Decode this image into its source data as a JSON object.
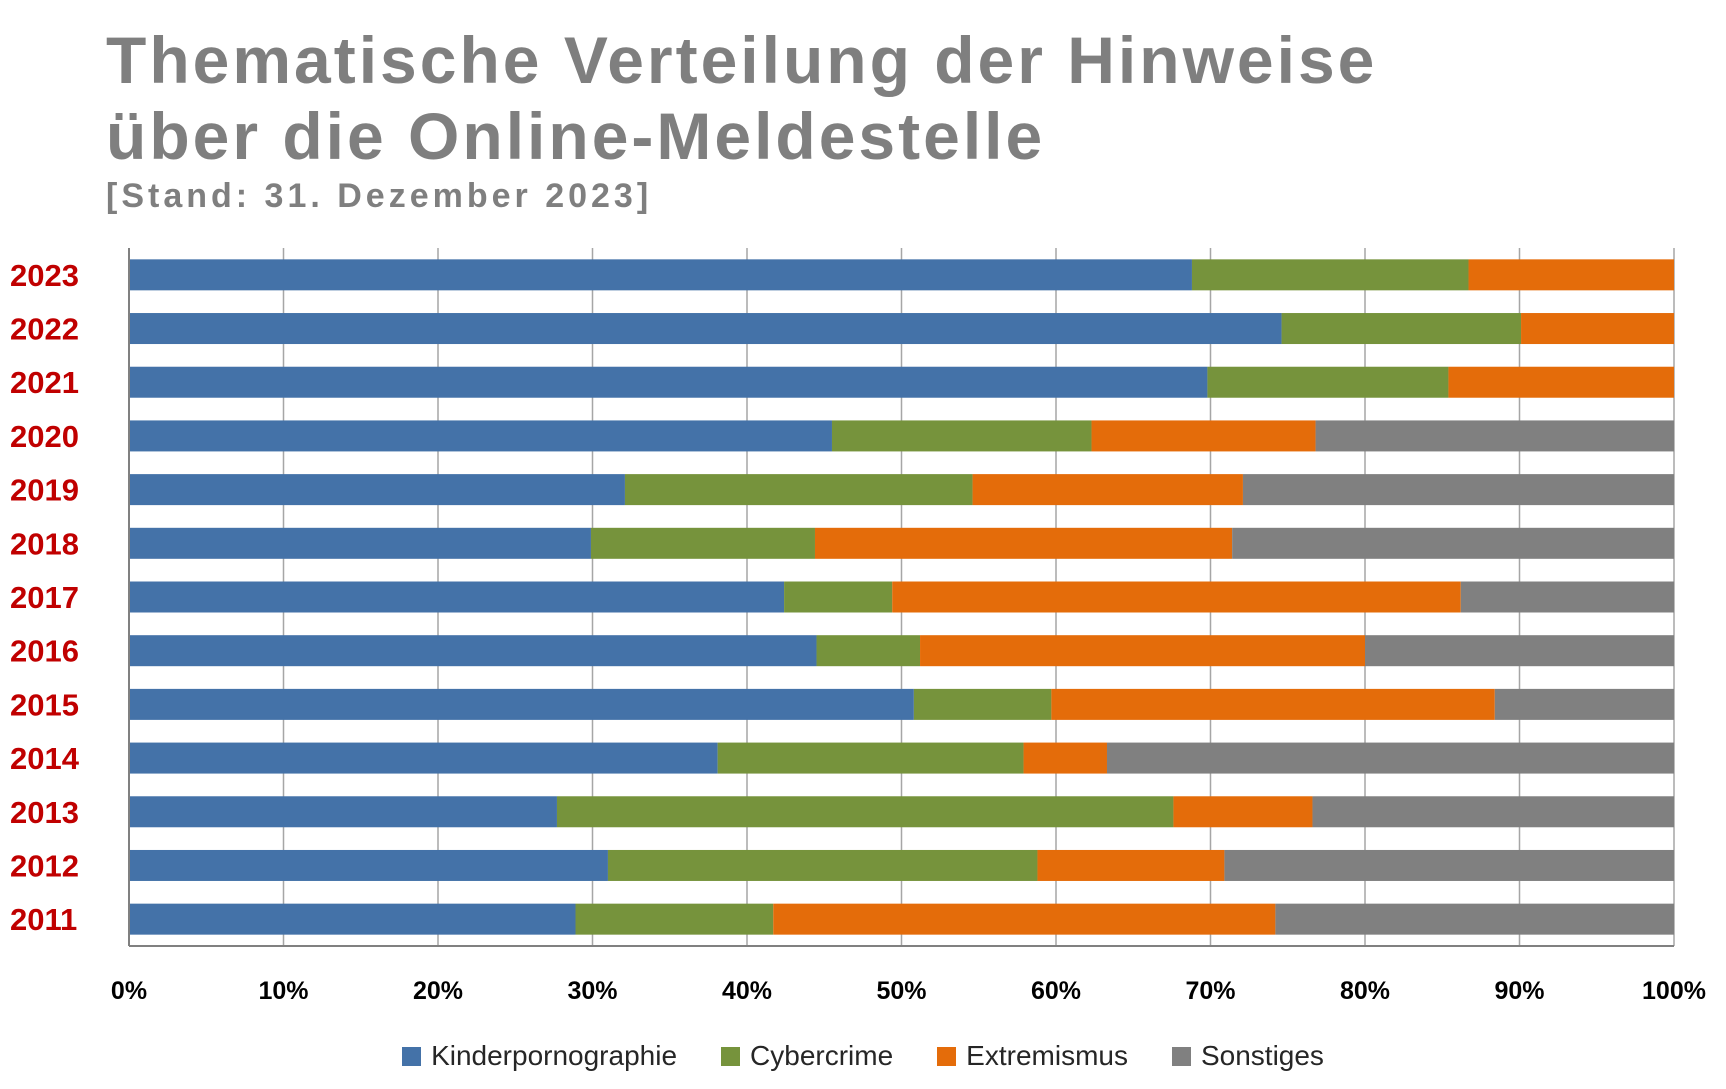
{
  "chart_data": {
    "type": "bar",
    "orientation": "horizontal",
    "stacked": "percent",
    "title": "Thematische Verteilung der Hinweise über die Online-Meldestelle",
    "title_lines": [
      "Thematische Verteilung der Hinweise",
      "über die Online-Meldestelle"
    ],
    "subtitle": "[Stand: 31. Dezember 2023]",
    "xlabel": "",
    "ylabel": "",
    "xlim": [
      0,
      100
    ],
    "x_ticks": [
      "0%",
      "10%",
      "20%",
      "30%",
      "40%",
      "50%",
      "60%",
      "70%",
      "80%",
      "90%",
      "100%"
    ],
    "grid": true,
    "legend_position": "bottom",
    "categories": [
      "2023",
      "2022",
      "2021",
      "2020",
      "2019",
      "2018",
      "2017",
      "2016",
      "2015",
      "2014",
      "2013",
      "2012",
      "2011"
    ],
    "series": [
      {
        "name": "Kinderpornographie",
        "color": "#4472a8",
        "values": [
          68.8,
          74.6,
          69.8,
          45.5,
          32.1,
          29.9,
          42.4,
          44.5,
          50.8,
          38.1,
          27.7,
          31.0,
          28.9
        ]
      },
      {
        "name": "Cybercrime",
        "color": "#76933c",
        "values": [
          17.9,
          15.5,
          15.6,
          16.8,
          22.5,
          14.5,
          7.0,
          6.7,
          8.9,
          19.8,
          39.9,
          27.8,
          12.8
        ]
      },
      {
        "name": "Extremismus",
        "color": "#e46c0a",
        "values": [
          13.3,
          9.9,
          14.6,
          14.5,
          17.5,
          27.0,
          36.8,
          28.8,
          28.7,
          5.4,
          9.0,
          12.1,
          32.5
        ]
      },
      {
        "name": "Sonstiges",
        "color": "#808080",
        "values": [
          0.0,
          0.0,
          0.0,
          23.2,
          27.9,
          28.6,
          13.8,
          20.0,
          11.6,
          36.7,
          23.4,
          29.1,
          25.8
        ]
      }
    ]
  }
}
